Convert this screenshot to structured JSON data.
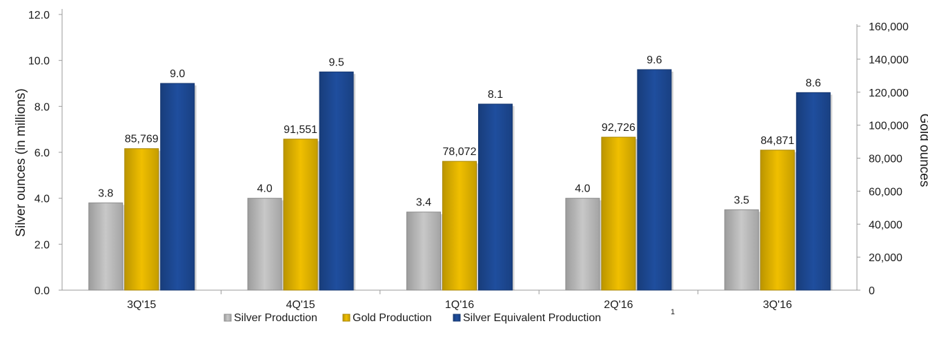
{
  "chart_data": {
    "type": "bar",
    "categories": [
      "3Q'15",
      "4Q'15",
      "1Q'16",
      "2Q'16",
      "3Q'16"
    ],
    "series": [
      {
        "name": "Silver Production",
        "axis": "left",
        "color": "#c8c8c8",
        "values": [
          3.8,
          4.0,
          3.4,
          4.0,
          3.5
        ],
        "labels": [
          "3.8",
          "4.0",
          "3.4",
          "4.0",
          "3.5"
        ]
      },
      {
        "name": "Gold Production",
        "axis": "right",
        "color": "#f0bf00",
        "values": [
          85769,
          91551,
          78072,
          92726,
          84871
        ],
        "labels": [
          "85,769",
          "91,551",
          "78,072",
          "92,726",
          "84,871"
        ]
      },
      {
        "name": "Silver Equivalent Production",
        "name_superscript": "1",
        "axis": "left",
        "color": "#1f4e9e",
        "values": [
          9.0,
          9.5,
          8.1,
          9.6,
          8.6
        ],
        "labels": [
          "9.0",
          "9.5",
          "8.1",
          "9.6",
          "8.6"
        ]
      }
    ],
    "ylabel": "Silver ounces (in millions)",
    "y2label": "Gold ounces",
    "ylim": [
      0,
      12
    ],
    "y2lim": [
      0,
      160000
    ],
    "yticks": [
      "0.0",
      "2.0",
      "4.0",
      "6.0",
      "8.0",
      "10.0",
      "12.0"
    ],
    "y2ticks": [
      "0",
      "20,000",
      "40,000",
      "60,000",
      "80,000",
      "100,000",
      "120,000",
      "140,000",
      "160,000"
    ],
    "grid": false,
    "legend": "bottom"
  }
}
